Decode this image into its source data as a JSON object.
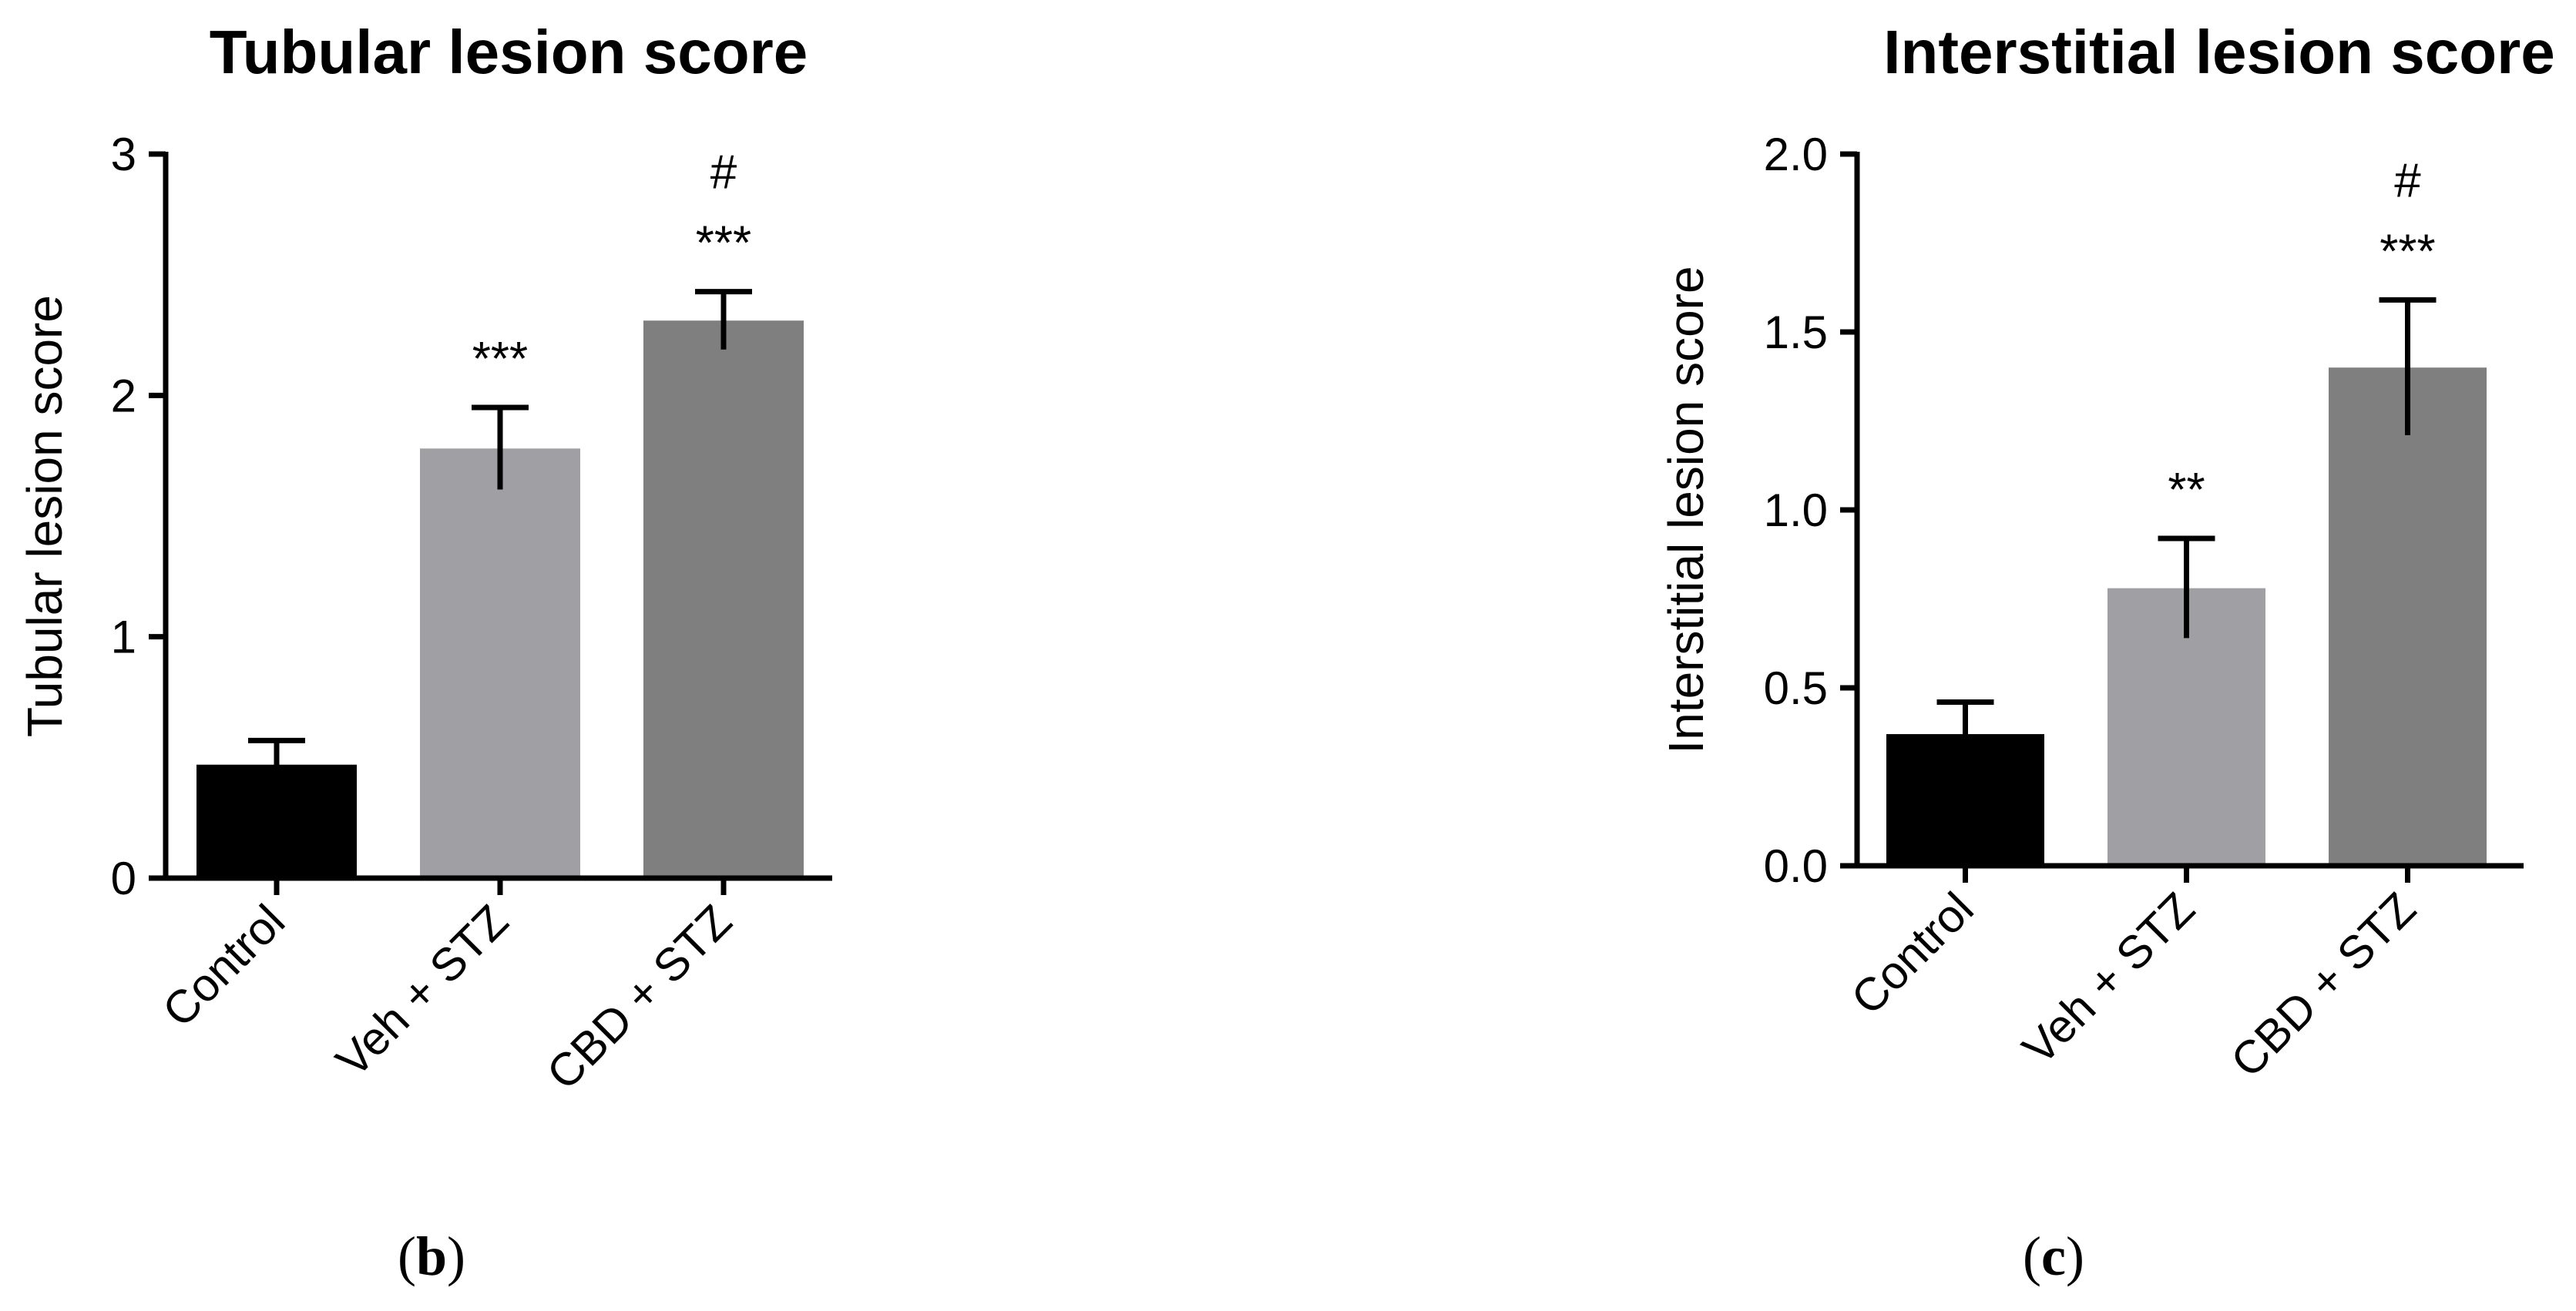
{
  "chart_data": [
    {
      "type": "bar",
      "title": "Tubular lesion score",
      "ylabel": "Tubular lesion score",
      "xlabel": "",
      "categories": [
        "Control",
        "Veh + STZ",
        "CBD + STZ"
      ],
      "values": [
        0.47,
        1.78,
        2.31
      ],
      "errors": [
        0.1,
        0.17,
        0.12
      ],
      "ylim": [
        0,
        3
      ],
      "yticks": [
        "0",
        "1",
        "2",
        "3"
      ],
      "yticks_values": [
        0,
        1,
        2,
        3
      ],
      "colors": [
        "#000000",
        "#a0a0a4",
        "#7f7f7f"
      ],
      "annotations": [
        {
          "category": 1,
          "lines": [
            "***"
          ]
        },
        {
          "category": 2,
          "lines": [
            "#",
            "***"
          ]
        }
      ],
      "grid": false,
      "panel_label": {
        "open": "(",
        "letter": "b",
        "close": ")"
      }
    },
    {
      "type": "bar",
      "title": "Interstitial lesion score",
      "ylabel": "Interstitial lesion score",
      "xlabel": "",
      "categories": [
        "Control",
        "Veh + STZ",
        "CBD + STZ"
      ],
      "values": [
        0.37,
        0.78,
        1.4
      ],
      "errors": [
        0.09,
        0.14,
        0.19
      ],
      "ylim": [
        0,
        2
      ],
      "yticks": [
        "0.0",
        "0.5",
        "1.0",
        "1.5",
        "2.0"
      ],
      "yticks_values": [
        0,
        0.5,
        1,
        1.5,
        2
      ],
      "colors": [
        "#000000",
        "#a0a0a4",
        "#7f7f7f"
      ],
      "annotations": [
        {
          "category": 1,
          "lines": [
            "**"
          ]
        },
        {
          "category": 2,
          "lines": [
            "#",
            "***"
          ]
        }
      ],
      "grid": false,
      "panel_label": {
        "open": "(",
        "letter": "c",
        "close": ")"
      }
    }
  ]
}
